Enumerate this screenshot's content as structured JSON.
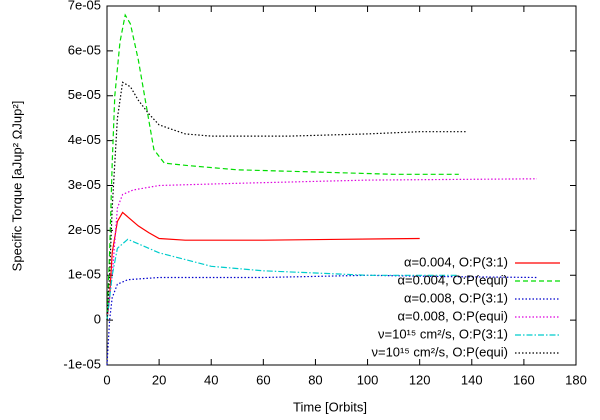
{
  "chart_data": {
    "type": "line",
    "xlabel": "Time [Orbits]",
    "ylabel": "Specific Torque [aJup² ΩJup²]",
    "xlim": [
      0,
      180
    ],
    "xticks": [
      0,
      20,
      40,
      60,
      80,
      100,
      120,
      140,
      160,
      180
    ],
    "ylim": [
      -1e-05,
      7e-05
    ],
    "yticks": [
      {
        "value": -1e-05,
        "label": "-1e-05"
      },
      0,
      {
        "value": 1e-05,
        "label": "1e-05"
      },
      {
        "value": 2e-05,
        "label": "2e-05"
      },
      {
        "value": 3e-05,
        "label": "3e-05"
      },
      {
        "value": 4e-05,
        "label": "4e-05"
      },
      {
        "value": 5e-05,
        "label": "5e-05"
      },
      {
        "value": 6e-05,
        "label": "6e-05"
      },
      {
        "value": 7e-05,
        "label": "7e-05"
      }
    ],
    "legend": "lower right",
    "series": [
      {
        "name": "α=0.004, O:P(3:1)",
        "color": "#ff0000",
        "dash": "solid",
        "x": [
          0,
          1,
          2,
          4,
          6,
          8,
          12,
          16,
          20,
          30,
          60,
          90,
          120
        ],
        "values": [
          0,
          5e-06,
          1.5e-05,
          2.2e-05,
          2.4e-05,
          2.3e-05,
          2.1e-05,
          1.95e-05,
          1.82e-05,
          1.78e-05,
          1.78e-05,
          1.8e-05,
          1.82e-05
        ]
      },
      {
        "name": "α=0.004, O:P(equi)",
        "color": "#00dd00",
        "dash": "dashed",
        "x": [
          0,
          1,
          2,
          3,
          5,
          7,
          9,
          12,
          15,
          18,
          22,
          30,
          50,
          80,
          110,
          135
        ],
        "values": [
          0,
          1.5e-05,
          3.5e-05,
          5e-05,
          6.2e-05,
          6.8e-05,
          6.6e-05,
          5.8e-05,
          4.8e-05,
          3.8e-05,
          3.5e-05,
          3.45e-05,
          3.35e-05,
          3.3e-05,
          3.25e-05,
          3.25e-05
        ]
      },
      {
        "name": "α=0.008, O:P(3:1)",
        "color": "#0000cc",
        "dash": "dotted",
        "x": [
          0,
          1,
          2,
          4,
          8,
          20,
          60,
          100,
          130,
          165
        ],
        "values": [
          -1e-05,
          0,
          5e-06,
          8e-06,
          9e-06,
          9.5e-06,
          9.5e-06,
          1e-05,
          9.7e-06,
          9.5e-06
        ]
      },
      {
        "name": "α=0.008, O:P(equi)",
        "color": "#dd00dd",
        "dash": "dotted",
        "x": [
          0,
          2,
          4,
          6,
          10,
          20,
          50,
          100,
          165
        ],
        "values": [
          0,
          1e-05,
          2.5e-05,
          2.8e-05,
          2.9e-05,
          3e-05,
          3.05e-05,
          3.12e-05,
          3.15e-05
        ]
      },
      {
        "name": "ν=10¹⁵ cm²/s, O:P(3:1)",
        "color": "#00cccc",
        "dash": "dashdot",
        "x": [
          0,
          2,
          4,
          8,
          12,
          20,
          40,
          60,
          80,
          100,
          135
        ],
        "values": [
          0,
          1e-05,
          1.6e-05,
          1.8e-05,
          1.7e-05,
          1.5e-05,
          1.2e-05,
          1.1e-05,
          1.05e-05,
          1e-05,
          1e-05
        ]
      },
      {
        "name": "ν=10¹⁵ cm²/s, O:P(equi)",
        "color": "#000000",
        "dash": "dotted",
        "x": [
          0,
          1,
          2,
          4,
          6,
          9,
          12,
          16,
          20,
          30,
          40,
          70,
          100,
          120,
          138
        ],
        "values": [
          0,
          1e-05,
          2.5e-05,
          4.5e-05,
          5.3e-05,
          5.2e-05,
          4.9e-05,
          4.6e-05,
          4.35e-05,
          4.15e-05,
          4.1e-05,
          4.1e-05,
          4.15e-05,
          4.2e-05,
          4.2e-05
        ]
      }
    ]
  }
}
